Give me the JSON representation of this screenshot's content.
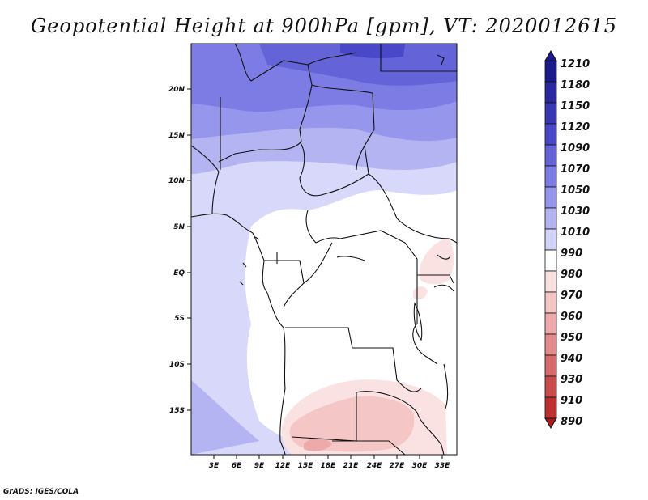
{
  "title": "Geopotential Height at 900hPa [gpm], VT: 2020012615",
  "footer": "GrADS: IGES/COLA",
  "map": {
    "lat_labels": [
      "20N",
      "15N",
      "10N",
      "5N",
      "EQ",
      "5S",
      "10S",
      "15S"
    ],
    "lon_labels": [
      "3E",
      "6E",
      "9E",
      "12E",
      "15E",
      "18E",
      "21E",
      "24E",
      "27E",
      "30E",
      "33E"
    ]
  },
  "colorbar": {
    "levels": [
      "1210",
      "1180",
      "1150",
      "1120",
      "1090",
      "1070",
      "1050",
      "1030",
      "1010",
      "990",
      "980",
      "970",
      "960",
      "950",
      "940",
      "930",
      "910",
      "890"
    ],
    "colors": [
      "#1a1a8c",
      "#2828a0",
      "#3838b4",
      "#4848c8",
      "#6464d8",
      "#7c7ce4",
      "#9696ec",
      "#b4b4f2",
      "#d4d4fa",
      "#ffffff",
      "#fbe2e2",
      "#f5c6c6",
      "#eeaaaa",
      "#e48c8c",
      "#d86c6c",
      "#cc4c4c",
      "#be3030",
      "#a81c1c"
    ]
  }
}
